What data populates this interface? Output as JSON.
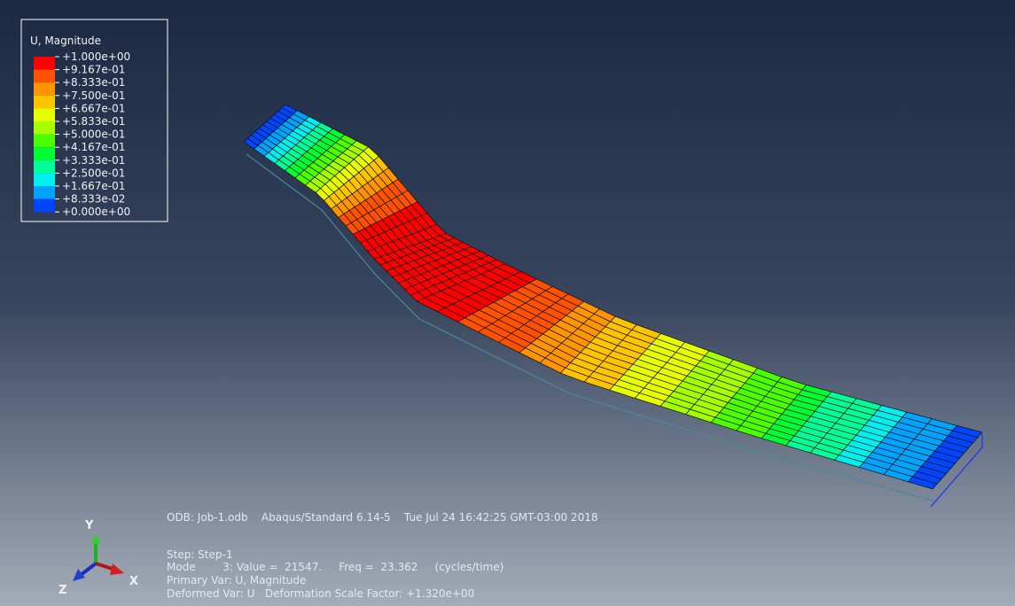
{
  "legend": {
    "title": "U, Magnitude",
    "labels": [
      "+1.000e+00",
      "+9.167e-01",
      "+8.333e-01",
      "+7.500e-01",
      "+6.667e-01",
      "+5.833e-01",
      "+5.000e-01",
      "+4.167e-01",
      "+3.333e-01",
      "+2.500e-01",
      "+1.667e-01",
      "+8.333e-02",
      "+0.000e+00"
    ]
  },
  "info": {
    "odb_line": "ODB: Job-1.odb    Abaqus/Standard 6.14-5    Tue Jul 24 16:42:25 GMT-03:00 2018",
    "step": "Step: Step-1",
    "mode": "Mode        3: Value =  21547.     Freq =  23.362     (cycles/time)",
    "primary_var": "Primary Var: U, Magnitude",
    "deformed_var": "Deformed Var: U   Deformation Scale Factor: +1.320e+00"
  },
  "triad": {
    "x": "X",
    "y": "Y",
    "z": "Z"
  }
}
